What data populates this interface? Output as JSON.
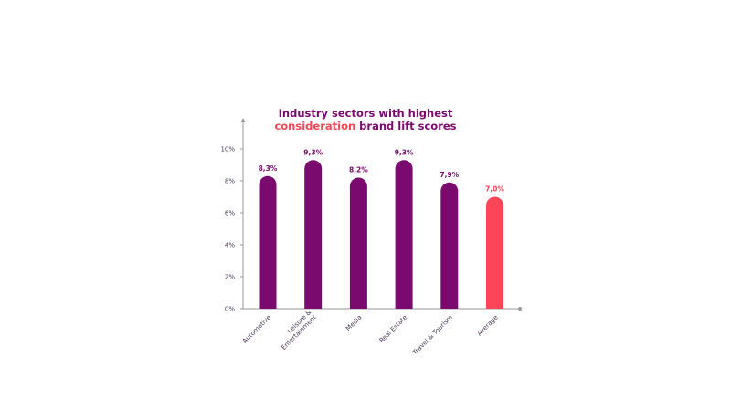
{
  "title": {
    "line1": "Industry sectors with highest",
    "line2_accent": "consideration",
    "line2_rest": " brand lift scores"
  },
  "colors": {
    "primary": "#7a0a6e",
    "accent": "#fc4657",
    "axis": "#9a9a9a"
  },
  "chart_data": {
    "type": "bar",
    "title": "Industry sectors with highest consideration brand lift scores",
    "categories": [
      "Automotive",
      "Leisure & Entertainment",
      "Media",
      "Real Estate",
      "Travel & Tourism",
      "Average"
    ],
    "category_lines": [
      [
        "Automotive"
      ],
      [
        "Leisure &",
        "Entertainment"
      ],
      [
        "Media"
      ],
      [
        "Real Estate"
      ],
      [
        "Travel & Tourism"
      ],
      [
        "Average"
      ]
    ],
    "values": [
      8.3,
      9.3,
      8.2,
      9.3,
      7.9,
      7.0
    ],
    "data_labels": [
      "8,3%",
      "9,3%",
      "8,2%",
      "9,3%",
      "7,9%",
      "7,0%"
    ],
    "highlight": [
      false,
      false,
      false,
      false,
      false,
      true
    ],
    "yticks": [
      0,
      2,
      4,
      6,
      8,
      10
    ],
    "ytick_labels": [
      "0%",
      "2%",
      "4%",
      "6%",
      "8%",
      "10%"
    ],
    "ylim": [
      0,
      10
    ],
    "xlabel": "",
    "ylabel": "",
    "grid": false,
    "legend": "none"
  }
}
